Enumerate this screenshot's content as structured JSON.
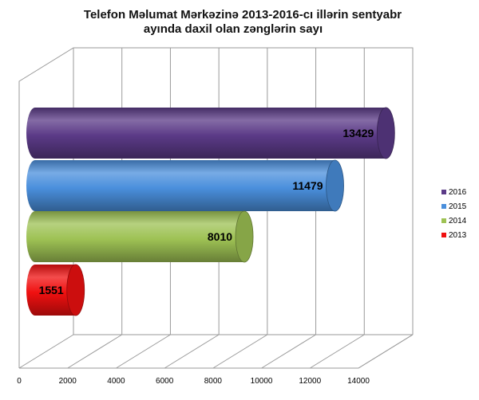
{
  "chart_data": {
    "type": "bar",
    "orientation": "horizontal",
    "style": "3d-cylinder",
    "title_lines": [
      "Telefon Məlumat Mərkəzinə 2013-2016-cı illərin sentyabr",
      "ayında daxil olan zənglərin sayı"
    ],
    "categories": [
      "2016",
      "2015",
      "2014",
      "2013"
    ],
    "values": [
      13429,
      11479,
      8010,
      1551
    ],
    "colors": [
      "#5b3a87",
      "#4a8fdc",
      "#9ec254",
      "#f01010"
    ],
    "data_labels": [
      "13429",
      "11479",
      "8010",
      "1551"
    ],
    "xlim": [
      0,
      14000
    ],
    "xticks": [
      0,
      2000,
      4000,
      6000,
      8000,
      10000,
      12000,
      14000
    ],
    "xtick_labels": [
      "0",
      "2000",
      "4000",
      "6000",
      "8000",
      "10000",
      "12000",
      "14000"
    ],
    "grid": true,
    "legend": {
      "position": "right",
      "entries": [
        "2016",
        "2015",
        "2014",
        "2013"
      ]
    },
    "xlabel": "",
    "ylabel": ""
  }
}
